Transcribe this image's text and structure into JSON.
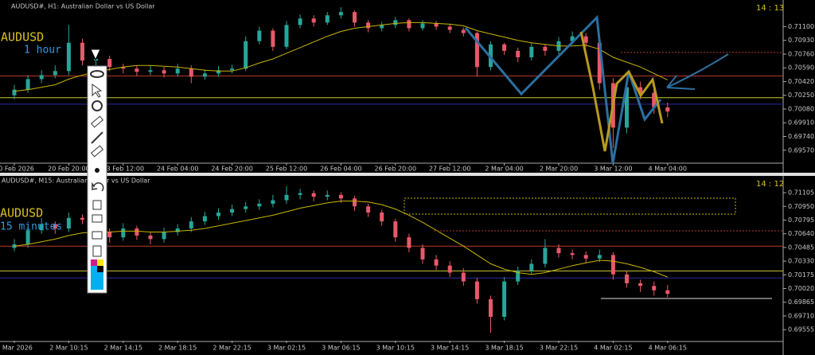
{
  "chart_data": [
    {
      "type": "candlestick",
      "title": "AUDUSD#, H1: Australian Dollar vs US Dollar",
      "clock": "14 : 13",
      "symbol_label": "AUDUSD",
      "period_label": "1 hour",
      "categories": [
        "20 Feb 2026",
        null,
        null,
        null,
        "20 Feb 20:00",
        null,
        null,
        null,
        "23 Feb 12:00",
        null,
        null,
        null,
        "24 Feb 04:00",
        null,
        null,
        null,
        "24 Feb 20:00",
        null,
        null,
        null,
        "25 Feb 12:00",
        null,
        null,
        null,
        "26 Feb 04:00",
        null,
        null,
        null,
        "26 Feb 20:00",
        null,
        null,
        null,
        "27 Feb 12:00",
        null,
        null,
        null,
        "2 Mar 04:00",
        null,
        null,
        null,
        "2 Mar 20:00",
        null,
        null,
        null,
        "3 Mar 12:00",
        null,
        null,
        null,
        "4 Mar 04:00"
      ],
      "ohlc": [
        [
          0.7025,
          0.7038,
          0.702,
          0.7032
        ],
        [
          0.7032,
          0.705,
          0.7028,
          0.7045
        ],
        [
          0.7045,
          0.7056,
          0.704,
          0.705
        ],
        [
          0.705,
          0.7062,
          0.7046,
          0.7055
        ],
        [
          0.7055,
          0.7112,
          0.705,
          0.709
        ],
        [
          0.709,
          0.7095,
          0.7062,
          0.7068
        ],
        [
          0.7068,
          0.7076,
          0.7062,
          0.707
        ],
        [
          0.707,
          0.7074,
          0.7055,
          0.706
        ],
        [
          0.706,
          0.7064,
          0.7052,
          0.7058
        ],
        [
          0.7058,
          0.7062,
          0.7049,
          0.7054
        ],
        [
          0.7054,
          0.7062,
          0.705,
          0.7056
        ],
        [
          0.7056,
          0.706,
          0.7047,
          0.7052
        ],
        [
          0.7052,
          0.7064,
          0.7048,
          0.7058
        ],
        [
          0.7058,
          0.7062,
          0.704,
          0.7048
        ],
        [
          0.7048,
          0.7057,
          0.7044,
          0.7052
        ],
        [
          0.7052,
          0.7061,
          0.7048,
          0.7056
        ],
        [
          0.7056,
          0.7063,
          0.7052,
          0.7058
        ],
        [
          0.7058,
          0.7098,
          0.7055,
          0.7092
        ],
        [
          0.7092,
          0.711,
          0.7088,
          0.7105
        ],
        [
          0.7105,
          0.7108,
          0.708,
          0.7085
        ],
        [
          0.7085,
          0.7117,
          0.7082,
          0.7112
        ],
        [
          0.7112,
          0.7125,
          0.7108,
          0.712
        ],
        [
          0.712,
          0.7124,
          0.711,
          0.7115
        ],
        [
          0.7115,
          0.7128,
          0.7112,
          0.7124
        ],
        [
          0.7124,
          0.7134,
          0.712,
          0.7128
        ],
        [
          0.7128,
          0.713,
          0.711,
          0.7115
        ],
        [
          0.7115,
          0.7118,
          0.7103,
          0.7108
        ],
        [
          0.7108,
          0.7116,
          0.7104,
          0.7112
        ],
        [
          0.7112,
          0.7122,
          0.7108,
          0.7118
        ],
        [
          0.7118,
          0.712,
          0.7104,
          0.7108
        ],
        [
          0.7108,
          0.7118,
          0.7105,
          0.7114
        ],
        [
          0.7114,
          0.7117,
          0.7106,
          0.711
        ],
        [
          0.711,
          0.7113,
          0.7102,
          0.7106
        ],
        [
          0.7106,
          0.7109,
          0.7098,
          0.7102
        ],
        [
          0.7102,
          0.7104,
          0.7048,
          0.706
        ],
        [
          0.706,
          0.7092,
          0.7056,
          0.7088
        ],
        [
          0.7088,
          0.709,
          0.7075,
          0.708
        ],
        [
          0.708,
          0.7084,
          0.7066,
          0.7072
        ],
        [
          0.7072,
          0.709,
          0.7068,
          0.7085
        ],
        [
          0.7085,
          0.7088,
          0.7074,
          0.708
        ],
        [
          0.708,
          0.7097,
          0.7076,
          0.7092
        ],
        [
          0.7092,
          0.7104,
          0.7088,
          0.7098
        ],
        [
          0.7098,
          0.7102,
          0.7085,
          0.709
        ],
        [
          0.709,
          0.7094,
          0.7032,
          0.704
        ],
        [
          0.704,
          0.7046,
          0.696,
          0.6985
        ],
        [
          0.6985,
          0.7045,
          0.6978,
          0.7035
        ],
        [
          0.7035,
          0.7042,
          0.702,
          0.7028
        ],
        [
          0.7028,
          0.7034,
          0.7002,
          0.701
        ],
        [
          0.701,
          0.7016,
          0.6998,
          0.7005
        ]
      ],
      "ma": [
        0.703,
        0.7032,
        0.7035,
        0.7038,
        0.7045,
        0.705,
        0.7054,
        0.7057,
        0.706,
        0.7062,
        0.7062,
        0.7061,
        0.706,
        0.7058,
        0.7056,
        0.7055,
        0.7055,
        0.7059,
        0.7065,
        0.707,
        0.7077,
        0.7084,
        0.7091,
        0.7098,
        0.7104,
        0.7108,
        0.711,
        0.7112,
        0.7114,
        0.7115,
        0.7115,
        0.7114,
        0.7113,
        0.7111,
        0.7105,
        0.7101,
        0.7097,
        0.7093,
        0.709,
        0.7088,
        0.7086,
        0.7086,
        0.7087,
        0.7082,
        0.7072,
        0.7066,
        0.706,
        0.7052,
        0.7044
      ],
      "up_color": "#26a69a",
      "down_color": "#e8596a",
      "ma_color": "#c8b400",
      "ylim": [
        0.6941,
        0.7138
      ],
      "yticks": [
        {
          "value": 0.711,
          "label": "0.71100"
        },
        {
          "value": 0.7093,
          "label": "0.70930"
        },
        {
          "value": 0.7076,
          "label": "0.70760"
        },
        {
          "value": 0.7059,
          "label": "0.70590"
        },
        {
          "value": 0.7042,
          "label": "0.70420"
        },
        {
          "value": 0.7025,
          "label": "0.70250"
        },
        {
          "value": 0.7008,
          "label": "0.70080"
        },
        {
          "value": 0.6991,
          "label": "0.69910"
        },
        {
          "value": 0.6974,
          "label": "0.69740"
        },
        {
          "value": 0.6957,
          "label": "0.69570"
        }
      ],
      "hlines": [
        {
          "value": 0.7049,
          "color": "#c0392b",
          "style": "solid"
        },
        {
          "value": 0.7022,
          "color": "#c8c830",
          "style": "solid"
        },
        {
          "value": 0.7014,
          "color": "#2a2aa0",
          "style": "solid"
        },
        {
          "value": 0.7078,
          "color": "#b03a2e",
          "style": "dotted"
        }
      ]
    },
    {
      "type": "candlestick",
      "title": "AUDUSD#, M15: Australian Dollar vs US Dollar",
      "clock": "14 : 12",
      "symbol_label": "AUDUSD",
      "period_label": "15 minutes",
      "categories": [
        "2 Mar 2026",
        null,
        null,
        null,
        "2 Mar 10:15",
        null,
        null,
        null,
        "2 Mar 14:15",
        null,
        null,
        null,
        "2 Mar 18:15",
        null,
        null,
        null,
        "2 Mar 22:15",
        null,
        null,
        null,
        "3 Mar 02:15",
        null,
        null,
        null,
        "3 Mar 06:15",
        null,
        null,
        null,
        "3 Mar 10:15",
        null,
        null,
        null,
        "3 Mar 14:15",
        null,
        null,
        null,
        "3 Mar 18:15",
        null,
        null,
        null,
        "3 Mar 22:15",
        null,
        null,
        null,
        "4 Mar 02:15",
        null,
        null,
        null,
        "4 Mar 06:15"
      ],
      "ohlc": [
        [
          0.7048,
          0.7058,
          0.7044,
          0.7052
        ],
        [
          0.7052,
          0.7072,
          0.7048,
          0.7068
        ],
        [
          0.7068,
          0.7082,
          0.7064,
          0.7075
        ],
        [
          0.7075,
          0.7078,
          0.7064,
          0.707
        ],
        [
          0.707,
          0.7088,
          0.7066,
          0.7082
        ],
        [
          0.7082,
          0.7086,
          0.7075,
          0.708
        ],
        [
          0.708,
          0.7083,
          0.706,
          0.7066
        ],
        [
          0.7066,
          0.707,
          0.7054,
          0.706
        ],
        [
          0.706,
          0.7076,
          0.7056,
          0.707
        ],
        [
          0.707,
          0.7073,
          0.7057,
          0.7062
        ],
        [
          0.7062,
          0.7066,
          0.7052,
          0.7058
        ],
        [
          0.7058,
          0.7071,
          0.7054,
          0.7066
        ],
        [
          0.7066,
          0.7075,
          0.7062,
          0.707
        ],
        [
          0.707,
          0.7083,
          0.7066,
          0.7078
        ],
        [
          0.7078,
          0.7089,
          0.7074,
          0.7084
        ],
        [
          0.7084,
          0.7093,
          0.708,
          0.7088
        ],
        [
          0.7088,
          0.7097,
          0.7084,
          0.7092
        ],
        [
          0.7092,
          0.71,
          0.7088,
          0.7095
        ],
        [
          0.7095,
          0.7103,
          0.7091,
          0.7098
        ],
        [
          0.7098,
          0.7108,
          0.7094,
          0.7102
        ],
        [
          0.7102,
          0.7118,
          0.7098,
          0.7108
        ],
        [
          0.7108,
          0.7115,
          0.7103,
          0.711
        ],
        [
          0.711,
          0.7113,
          0.7101,
          0.7106
        ],
        [
          0.7106,
          0.7113,
          0.7102,
          0.7108
        ],
        [
          0.7108,
          0.7111,
          0.7099,
          0.7104
        ],
        [
          0.7104,
          0.7107,
          0.709,
          0.7095
        ],
        [
          0.7095,
          0.7098,
          0.7083,
          0.7088
        ],
        [
          0.7088,
          0.7091,
          0.7073,
          0.7078
        ],
        [
          0.7078,
          0.7081,
          0.7055,
          0.706
        ],
        [
          0.706,
          0.7064,
          0.7043,
          0.7048
        ],
        [
          0.7048,
          0.7052,
          0.703,
          0.7035
        ],
        [
          0.7035,
          0.704,
          0.7023,
          0.7028
        ],
        [
          0.7028,
          0.7033,
          0.7015,
          0.702
        ],
        [
          0.702,
          0.7025,
          0.7005,
          0.701
        ],
        [
          0.701,
          0.7014,
          0.6985,
          0.699
        ],
        [
          0.699,
          0.6994,
          0.6952,
          0.697
        ],
        [
          0.697,
          0.7015,
          0.6966,
          0.701
        ],
        [
          0.701,
          0.7027,
          0.7006,
          0.7022
        ],
        [
          0.7022,
          0.7035,
          0.7018,
          0.703
        ],
        [
          0.703,
          0.7058,
          0.7026,
          0.7048
        ],
        [
          0.7048,
          0.7052,
          0.7037,
          0.7042
        ],
        [
          0.7042,
          0.7046,
          0.7035,
          0.704
        ],
        [
          0.704,
          0.7044,
          0.7031,
          0.7036
        ],
        [
          0.7036,
          0.7046,
          0.7032,
          0.704
        ],
        [
          0.704,
          0.7043,
          0.7012,
          0.7018
        ],
        [
          0.7018,
          0.7022,
          0.7003,
          0.7008
        ],
        [
          0.7008,
          0.7012,
          0.6998,
          0.7005
        ],
        [
          0.7005,
          0.701,
          0.6994,
          0.7
        ],
        [
          0.7,
          0.7006,
          0.6992,
          0.6996
        ]
      ],
      "ma": [
        0.705,
        0.7052,
        0.7055,
        0.7058,
        0.7062,
        0.7065,
        0.7066,
        0.7066,
        0.7067,
        0.7067,
        0.7066,
        0.7066,
        0.7067,
        0.7068,
        0.707,
        0.7073,
        0.7076,
        0.7079,
        0.7082,
        0.7085,
        0.7089,
        0.7093,
        0.7096,
        0.7099,
        0.7101,
        0.7101,
        0.71,
        0.7097,
        0.7092,
        0.7085,
        0.7077,
        0.7068,
        0.7059,
        0.705,
        0.704,
        0.703,
        0.7024,
        0.702,
        0.7018,
        0.702,
        0.7024,
        0.7028,
        0.7031,
        0.7034,
        0.7033,
        0.703,
        0.7026,
        0.7021,
        0.7015
      ],
      "up_color": "#26a69a",
      "down_color": "#e8596a",
      "ma_color": "#c8b400",
      "ylim": [
        0.6943,
        0.7125
      ],
      "yticks": [
        {
          "value": 0.71105,
          "label": "0.71105"
        },
        {
          "value": 0.7095,
          "label": "0.70950"
        },
        {
          "value": 0.70795,
          "label": "0.70795"
        },
        {
          "value": 0.7064,
          "label": "0.70640"
        },
        {
          "value": 0.70485,
          "label": "0.70485"
        },
        {
          "value": 0.7033,
          "label": "0.70330"
        },
        {
          "value": 0.70175,
          "label": "0.70175"
        },
        {
          "value": 0.7002,
          "label": "0.70020"
        },
        {
          "value": 0.69865,
          "label": "0.69865"
        },
        {
          "value": 0.6971,
          "label": "0.69710"
        },
        {
          "value": 0.69555,
          "label": "0.69555"
        }
      ],
      "hlines": [
        {
          "value": 0.705,
          "color": "#c0392b",
          "style": "solid"
        },
        {
          "value": 0.7022,
          "color": "#c8c830",
          "style": "solid"
        },
        {
          "value": 0.7014,
          "color": "#2a2aa0",
          "style": "solid"
        }
      ]
    }
  ]
}
